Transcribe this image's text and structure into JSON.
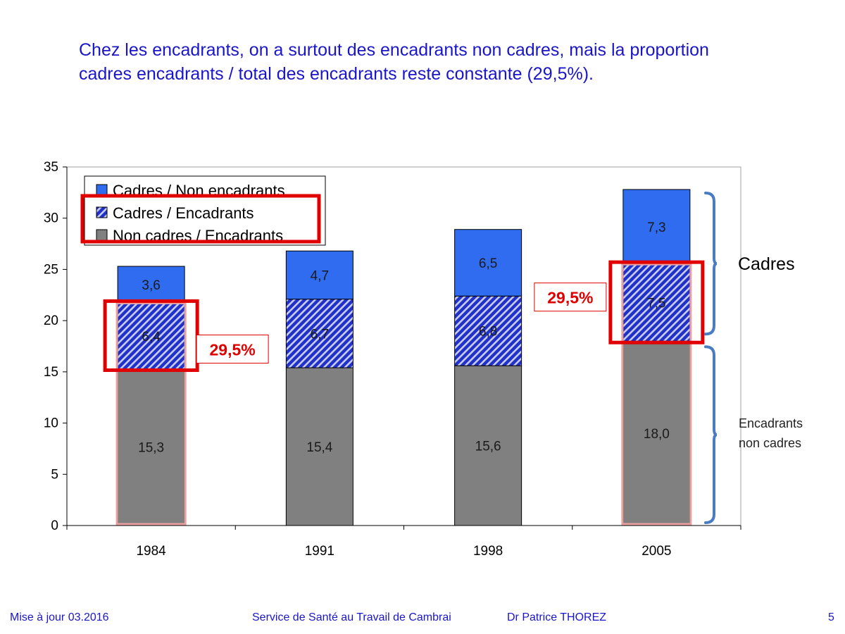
{
  "slide": {
    "title_lines": [
      "Chez les encadrants, on a surtout des encadrants non cadres, mais la proportion",
      "cadres encadrants / total des encadrants reste constante (29,5%)."
    ],
    "footer": {
      "date": "Mise à jour 03.2016",
      "service": "Service de Santé au Travail de Cambrai",
      "author": "Dr Patrice THOREZ",
      "page": "5"
    }
  },
  "chart_data": {
    "type": "bar",
    "stacked": true,
    "categories": [
      "1984",
      "1991",
      "1998",
      "2005"
    ],
    "series": [
      {
        "name": "Non cadres / Encadrants",
        "values": [
          15.3,
          15.4,
          15.6,
          18.0
        ],
        "labels": [
          "15,3",
          "15,4",
          "15,6",
          "18,0"
        ],
        "color": "#808080",
        "pattern": "solid"
      },
      {
        "name": "Cadres / Encadrants",
        "values": [
          6.4,
          6.7,
          6.8,
          7.5
        ],
        "labels": [
          "6,4",
          "6,7",
          "6,8",
          "7,5"
        ],
        "color": "#2030c8",
        "pattern": "hatch"
      },
      {
        "name": "Cadres / Non encadrants",
        "values": [
          3.6,
          4.7,
          6.5,
          7.3
        ],
        "labels": [
          "3,6",
          "4,7",
          "6,5",
          "7,3"
        ],
        "color": "#2f6cf0",
        "pattern": "solid"
      }
    ],
    "ylim": [
      0,
      35
    ],
    "yticks": [
      0,
      5,
      10,
      15,
      20,
      25,
      30,
      35
    ],
    "legend": {
      "placement": "top-left",
      "order": [
        "Cadres / Non encadrants",
        "Cadres / Encadrants",
        "Non cadres / Encadrants"
      ]
    },
    "annotations": {
      "percent_label": "29,5%",
      "highlighted_categories": [
        "1984",
        "2005"
      ],
      "brace_labels": {
        "upper": "Cadres",
        "lower_lines": [
          "Encadrants",
          "non cadres"
        ]
      }
    },
    "colors": {
      "highlight": "#e00000",
      "brace": "#4a7cc4",
      "title": "#1a16c8"
    }
  }
}
